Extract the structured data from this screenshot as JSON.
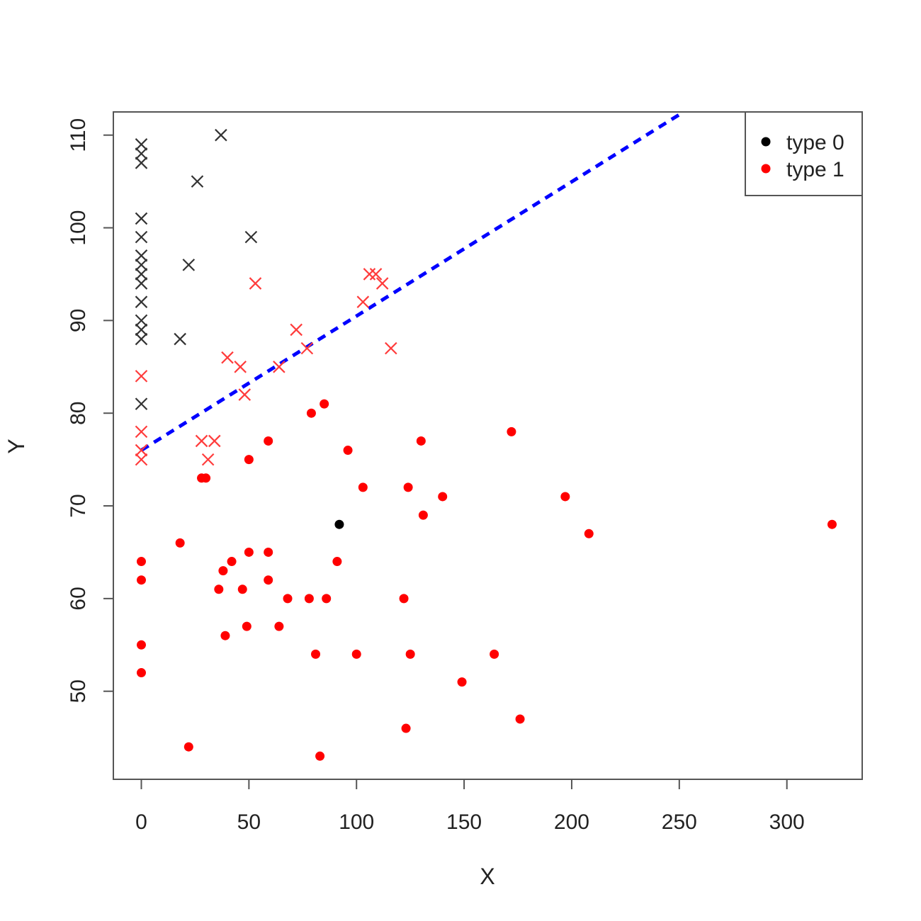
{
  "chart_data": {
    "type": "scatter",
    "xlabel": "X",
    "ylabel": "Y",
    "xlim": [
      -13,
      335
    ],
    "ylim": [
      40.5,
      112.5
    ],
    "xticks": [
      0,
      50,
      100,
      150,
      200,
      250,
      300
    ],
    "yticks": [
      50,
      60,
      70,
      80,
      90,
      100,
      110
    ],
    "legend": {
      "position": "top-right",
      "entries": [
        {
          "label": "type 0",
          "color": "#000000",
          "symbol": "dot"
        },
        {
          "label": "type 1",
          "color": "#ff0000",
          "symbol": "dot"
        }
      ]
    },
    "fit_line": {
      "color": "#0000ff",
      "style": "dashed",
      "points": [
        [
          0,
          76
        ],
        [
          252,
          112.5
        ]
      ]
    },
    "series": [
      {
        "name": "type 0",
        "marker": "x",
        "color": "#000000",
        "points": [
          [
            0,
            109
          ],
          [
            0,
            108
          ],
          [
            0,
            107
          ],
          [
            0,
            101
          ],
          [
            0,
            99
          ],
          [
            0,
            97
          ],
          [
            0,
            96
          ],
          [
            0,
            95
          ],
          [
            0,
            94
          ],
          [
            0,
            92
          ],
          [
            0,
            90
          ],
          [
            0,
            89
          ],
          [
            0,
            88
          ],
          [
            0,
            81
          ],
          [
            18,
            88
          ],
          [
            22,
            96
          ],
          [
            26,
            105
          ],
          [
            37,
            110
          ],
          [
            51,
            99
          ]
        ]
      },
      {
        "name": "type 1",
        "marker": "x",
        "color": "#ff0000",
        "points": [
          [
            0,
            84
          ],
          [
            0,
            78
          ],
          [
            0,
            76
          ],
          [
            0,
            75
          ],
          [
            28,
            77
          ],
          [
            31,
            75
          ],
          [
            34,
            77
          ],
          [
            40,
            86
          ],
          [
            46,
            85
          ],
          [
            48,
            82
          ],
          [
            53,
            94
          ],
          [
            64,
            85
          ],
          [
            72,
            89
          ],
          [
            77,
            87
          ],
          [
            103,
            92
          ],
          [
            106,
            95
          ],
          [
            109,
            95
          ],
          [
            112,
            94
          ],
          [
            116,
            87
          ]
        ]
      },
      {
        "name": "type 0",
        "marker": "dot",
        "color": "#000000",
        "points": [
          [
            92,
            68
          ]
        ]
      },
      {
        "name": "type 1",
        "marker": "dot",
        "color": "#ff0000",
        "points": [
          [
            0,
            64
          ],
          [
            0,
            62
          ],
          [
            0,
            55
          ],
          [
            0,
            52
          ],
          [
            18,
            66
          ],
          [
            22,
            44
          ],
          [
            28,
            73
          ],
          [
            30,
            73
          ],
          [
            36,
            61
          ],
          [
            38,
            63
          ],
          [
            39,
            56
          ],
          [
            42,
            64
          ],
          [
            47,
            61
          ],
          [
            49,
            57
          ],
          [
            50,
            75
          ],
          [
            50,
            65
          ],
          [
            59,
            77
          ],
          [
            59,
            65
          ],
          [
            59,
            62
          ],
          [
            64,
            57
          ],
          [
            68,
            60
          ],
          [
            78,
            60
          ],
          [
            79,
            80
          ],
          [
            81,
            54
          ],
          [
            83,
            43
          ],
          [
            85,
            81
          ],
          [
            86,
            60
          ],
          [
            91,
            64
          ],
          [
            96,
            76
          ],
          [
            100,
            54
          ],
          [
            103,
            72
          ],
          [
            122,
            60
          ],
          [
            123,
            46
          ],
          [
            124,
            72
          ],
          [
            125,
            54
          ],
          [
            130,
            77
          ],
          [
            131,
            69
          ],
          [
            140,
            71
          ],
          [
            149,
            51
          ],
          [
            164,
            54
          ],
          [
            172,
            78
          ],
          [
            176,
            47
          ],
          [
            197,
            71
          ],
          [
            208,
            67
          ],
          [
            321,
            68
          ]
        ]
      }
    ]
  }
}
